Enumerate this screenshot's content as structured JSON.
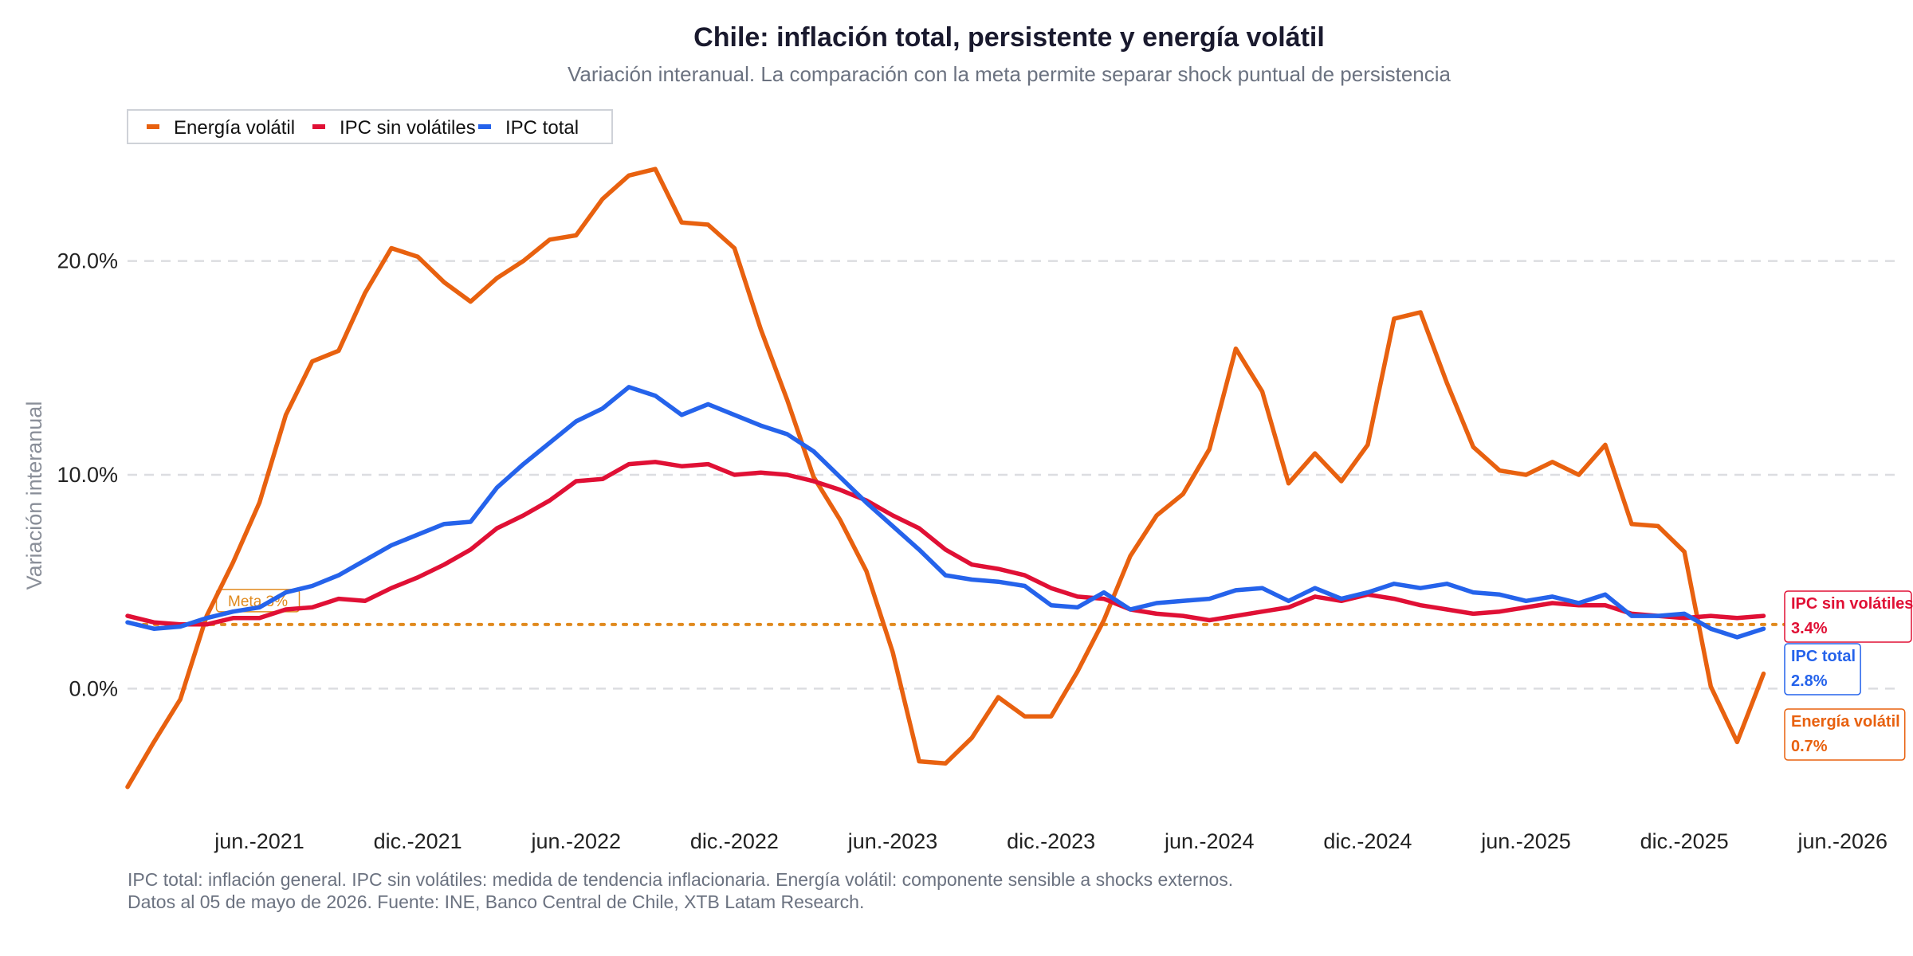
{
  "chart_data": {
    "type": "line",
    "title": "Chile: inflación total, persistente y energía volátil",
    "subtitle": "Variación interanual. La comparación con la meta permite separar shock puntual de persistencia",
    "xlabel": "",
    "ylabel": "Variación interanual",
    "x_start": "2021-01",
    "x_end": "2026-03",
    "xlim": [
      "2021-01",
      "2026-08"
    ],
    "ylim": [
      -5.8,
      25.5
    ],
    "y_ticks": [
      0,
      10,
      20
    ],
    "y_tick_labels": [
      "0.0%",
      "10.0%",
      "20.0%"
    ],
    "x_ticks": [
      "2021-06",
      "2021-12",
      "2022-06",
      "2022-12",
      "2023-06",
      "2023-12",
      "2024-06",
      "2024-12",
      "2025-06",
      "2025-12",
      "2026-06"
    ],
    "x_tick_labels": [
      "jun.-2021",
      "dic.-2021",
      "jun.-2022",
      "dic.-2022",
      "jun.-2023",
      "dic.-2023",
      "jun.-2024",
      "dic.-2024",
      "jun.-2025",
      "dic.-2025",
      "jun.-2026"
    ],
    "grid": "horizontal dashed",
    "legend_position": "top-left",
    "reference_line": {
      "value": 3,
      "label": "Meta 3%",
      "color": "#e08a1e"
    },
    "series": [
      {
        "name": "Energía volátil",
        "color": "#e8610f",
        "end_label": "Energía volátil",
        "end_value_label": "0.7%",
        "values": [
          -4.6,
          -2.5,
          -0.5,
          3.4,
          5.9,
          8.7,
          12.8,
          15.3,
          15.8,
          18.5,
          20.6,
          20.2,
          19.0,
          18.1,
          19.2,
          20.0,
          21.0,
          21.2,
          22.9,
          24.0,
          24.3,
          21.8,
          21.7,
          20.6,
          16.8,
          13.5,
          9.9,
          7.9,
          5.5,
          1.7,
          -3.4,
          -3.5,
          -2.3,
          -0.4,
          -1.3,
          -1.3,
          0.8,
          3.2,
          6.2,
          8.1,
          9.1,
          11.2,
          15.9,
          13.9,
          9.6,
          11.0,
          9.7,
          11.4,
          17.3,
          17.6,
          14.3,
          11.3,
          10.2,
          10.0,
          10.6,
          10.0,
          11.4,
          7.7,
          7.6,
          6.4,
          0.1,
          -2.5,
          0.7
        ]
      },
      {
        "name": "IPC sin volátiles",
        "color": "#e01035",
        "end_label": "IPC sin volátiles",
        "end_value_label": "3.4%",
        "values": [
          3.4,
          3.1,
          3.0,
          3.0,
          3.3,
          3.3,
          3.7,
          3.8,
          4.2,
          4.1,
          4.7,
          5.2,
          5.8,
          6.5,
          7.5,
          8.1,
          8.8,
          9.7,
          9.8,
          10.5,
          10.6,
          10.4,
          10.5,
          10.0,
          10.1,
          10.0,
          9.7,
          9.3,
          8.8,
          8.1,
          7.5,
          6.5,
          5.8,
          5.6,
          5.3,
          4.7,
          4.3,
          4.2,
          3.7,
          3.5,
          3.4,
          3.2,
          3.4,
          3.6,
          3.8,
          4.3,
          4.1,
          4.4,
          4.2,
          3.9,
          3.7,
          3.5,
          3.6,
          3.8,
          4.0,
          3.9,
          3.9,
          3.5,
          3.4,
          3.3,
          3.4,
          3.3,
          3.4
        ]
      },
      {
        "name": "IPC total",
        "color": "#2563eb",
        "end_label": "IPC total",
        "end_value_label": "2.8%",
        "values": [
          3.1,
          2.8,
          2.9,
          3.3,
          3.6,
          3.8,
          4.5,
          4.8,
          5.3,
          6.0,
          6.7,
          7.2,
          7.7,
          7.8,
          9.4,
          10.5,
          11.5,
          12.5,
          13.1,
          14.1,
          13.7,
          12.8,
          13.3,
          12.8,
          12.3,
          11.9,
          11.1,
          9.9,
          8.7,
          7.6,
          6.5,
          5.3,
          5.1,
          5.0,
          4.8,
          3.9,
          3.8,
          4.5,
          3.7,
          4.0,
          4.1,
          4.2,
          4.6,
          4.7,
          4.1,
          4.7,
          4.2,
          4.5,
          4.9,
          4.7,
          4.9,
          4.5,
          4.4,
          4.1,
          4.3,
          4.0,
          4.4,
          3.4,
          3.4,
          3.5,
          2.8,
          2.4,
          2.8
        ]
      }
    ],
    "footnotes": [
      "IPC total: inflación general. IPC sin volátiles: medida de tendencia inflacionaria. Energía volátil: componente sensible a shocks externos.",
      "Datos al 05 de mayo de 2026. Fuente: INE, Banco Central de Chile, XTB Latam Research."
    ]
  }
}
